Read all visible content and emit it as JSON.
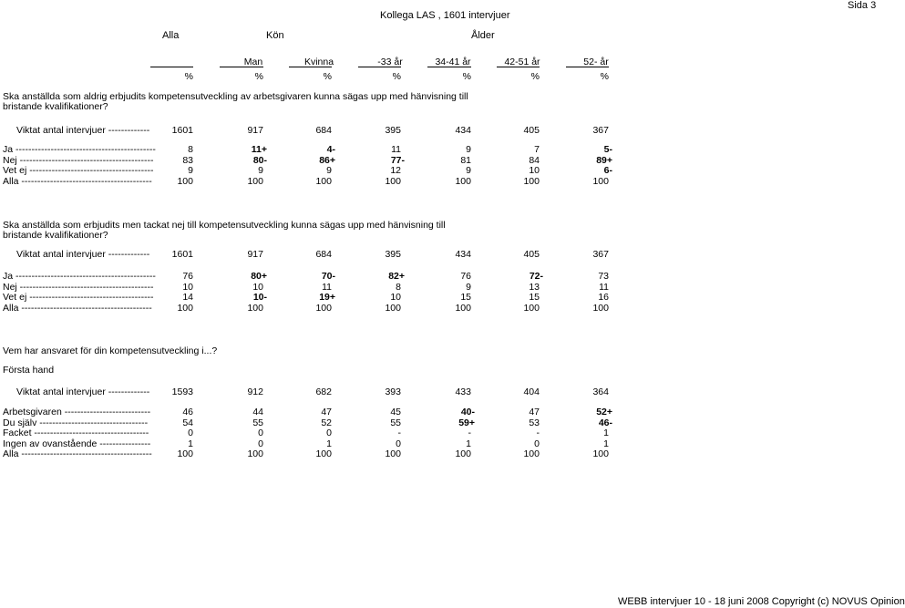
{
  "page": {
    "title": "Kollega LAS , 1601 intervjuer",
    "page_number": "Sida 3",
    "footer": "WEBB intervjuer 10 - 18 juni 2008 Copyright (c) NOVUS Opinion"
  },
  "header": {
    "group_labels": [
      "Alla",
      "Kön",
      "Ålder"
    ],
    "columns": [
      "Man",
      "Kvinna",
      "-33 år",
      "34-41 år",
      "42-51 år",
      "52- år"
    ],
    "unit": "%"
  },
  "sections": [
    {
      "question": [
        "Ska anställda som aldrig erbjudits kompetensutveckling av arbetsgivaren kunna sägas upp med hänvisning till",
        "bristande kvalifikationer?"
      ],
      "base_label": "Viktat antal intervjuer  -------------",
      "base": [
        "1601",
        "917",
        "684",
        "395",
        "434",
        "405",
        "367"
      ],
      "rows": [
        {
          "label": "Ja  --------------------------------------------",
          "values": [
            "8",
            "11+",
            "4-",
            "11",
            "9",
            "7",
            "5-"
          ],
          "bold": [
            false,
            true,
            true,
            false,
            false,
            false,
            true
          ]
        },
        {
          "label": "Nej  ------------------------------------------",
          "values": [
            "83",
            "80-",
            "86+",
            "77-",
            "81",
            "84",
            "89+"
          ],
          "bold": [
            false,
            true,
            true,
            true,
            false,
            false,
            true
          ]
        },
        {
          "label": "Vet ej  ---------------------------------------",
          "values": [
            "9",
            "9",
            "9",
            "12",
            "9",
            "10",
            "6-"
          ],
          "bold": [
            false,
            false,
            false,
            false,
            false,
            false,
            true
          ]
        },
        {
          "label": "Alla  -----------------------------------------",
          "values": [
            "100",
            "100",
            "100",
            "100",
            "100",
            "100",
            "100"
          ],
          "bold": [
            false,
            false,
            false,
            false,
            false,
            false,
            false
          ]
        }
      ]
    },
    {
      "question": [
        "Ska anställda som erbjudits men tackat nej till kompetensutveckling kunna sägas upp med hänvisning till",
        "bristande kvalifikationer?"
      ],
      "base_label": "Viktat antal intervjuer  -------------",
      "base": [
        "1601",
        "917",
        "684",
        "395",
        "434",
        "405",
        "367"
      ],
      "rows": [
        {
          "label": "Ja  --------------------------------------------",
          "values": [
            "76",
            "80+",
            "70-",
            "82+",
            "76",
            "72-",
            "73"
          ],
          "bold": [
            false,
            true,
            true,
            true,
            false,
            true,
            false
          ]
        },
        {
          "label": "Nej  ------------------------------------------",
          "values": [
            "10",
            "10",
            "11",
            "8",
            "9",
            "13",
            "11"
          ],
          "bold": [
            false,
            false,
            false,
            false,
            false,
            false,
            false
          ]
        },
        {
          "label": "Vet ej  ---------------------------------------",
          "values": [
            "14",
            "10-",
            "19+",
            "10",
            "15",
            "15",
            "16"
          ],
          "bold": [
            false,
            true,
            true,
            false,
            false,
            false,
            false
          ]
        },
        {
          "label": "Alla  -----------------------------------------",
          "values": [
            "100",
            "100",
            "100",
            "100",
            "100",
            "100",
            "100"
          ],
          "bold": [
            false,
            false,
            false,
            false,
            false,
            false,
            false
          ]
        }
      ]
    },
    {
      "question": [
        "Vem har ansvaret för din kompetensutveckling i...?"
      ],
      "subheading": "Första hand",
      "base_label": "Viktat antal intervjuer  -------------",
      "base": [
        "1593",
        "912",
        "682",
        "393",
        "433",
        "404",
        "364"
      ],
      "rows": [
        {
          "label": "Arbetsgivaren  ---------------------------",
          "values": [
            "46",
            "44",
            "47",
            "45",
            "40-",
            "47",
            "52+"
          ],
          "bold": [
            false,
            false,
            false,
            false,
            true,
            false,
            true
          ]
        },
        {
          "label": "Du själv  ----------------------------------",
          "values": [
            "54",
            "55",
            "52",
            "55",
            "59+",
            "53",
            "46-"
          ],
          "bold": [
            false,
            false,
            false,
            false,
            true,
            false,
            true
          ]
        },
        {
          "label": "Facket  ------------------------------------",
          "values": [
            "0",
            "0",
            "0",
            "-",
            "-",
            "-",
            "1"
          ],
          "bold": [
            false,
            false,
            false,
            false,
            false,
            false,
            false
          ]
        },
        {
          "label": "Ingen av ovanstående  ----------------",
          "values": [
            "1",
            "0",
            "1",
            "0",
            "1",
            "0",
            "1"
          ],
          "bold": [
            false,
            false,
            false,
            false,
            false,
            false,
            false
          ]
        },
        {
          "label": "Alla  -----------------------------------------",
          "values": [
            "100",
            "100",
            "100",
            "100",
            "100",
            "100",
            "100"
          ],
          "bold": [
            false,
            false,
            false,
            false,
            false,
            false,
            false
          ]
        }
      ]
    }
  ]
}
